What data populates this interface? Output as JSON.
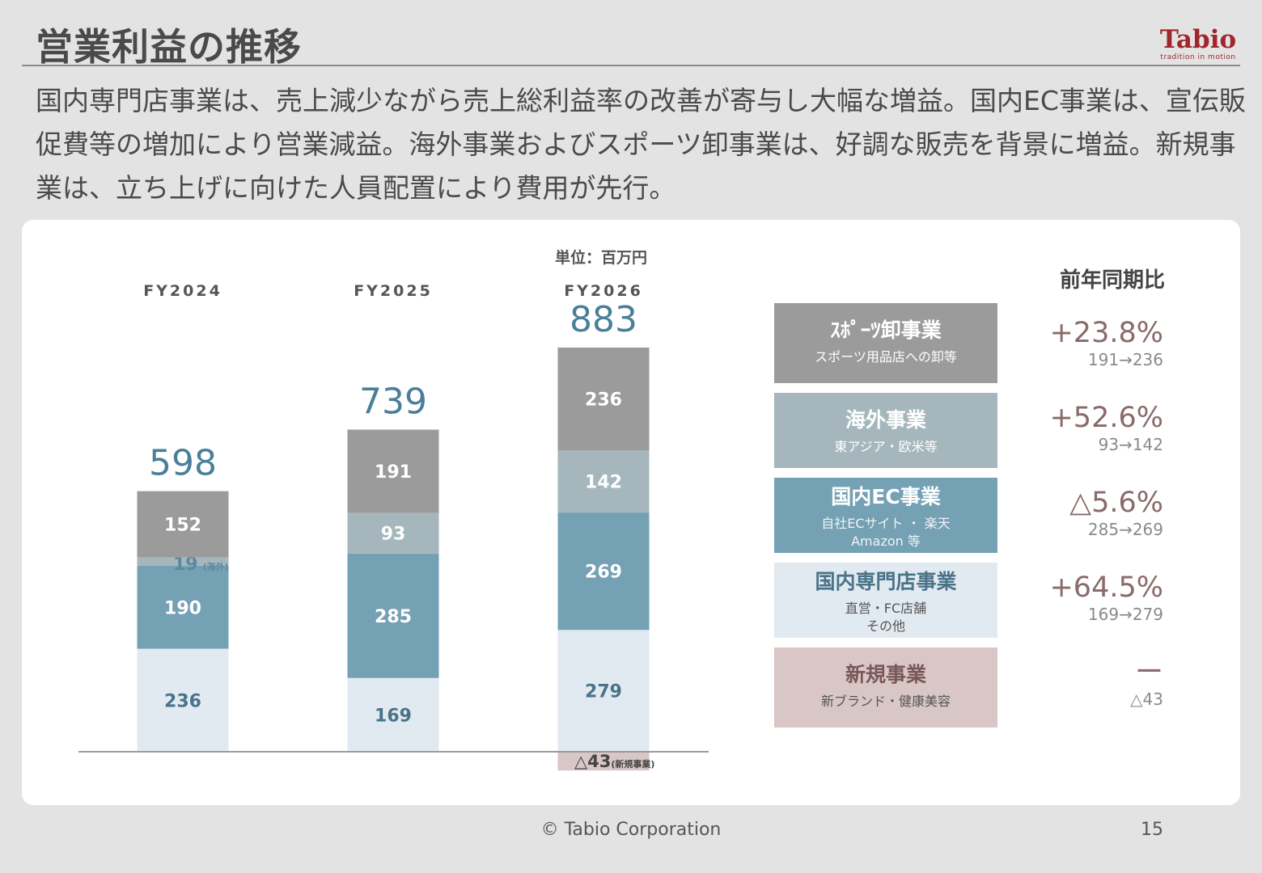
{
  "page": {
    "title": "営業利益の推移",
    "intro": "国内専門店事業は、売上減少ながら売上総利益率の改善が寄与し大幅な増益。国内EC事業は、宣伝販促費等の増加により営業減益。海外事業およびスポーツ卸事業は、好調な販売を背景に増益。新規事業は、立ち上げに向けた人員配置により費用が先行。",
    "footer": "© Tabio Corporation",
    "page_number": "15"
  },
  "logo": {
    "name": "Tabio",
    "tagline": "tradition in motion"
  },
  "chart_data": {
    "type": "bar",
    "stacked": true,
    "unit_label": "単位：百万円",
    "categories": [
      "FY2024",
      "FY2025",
      "FY2026"
    ],
    "totals": [
      598,
      739,
      883
    ],
    "series": [
      {
        "name": "国内専門店事業",
        "values": [
          236,
          169,
          279
        ],
        "color": "#e2eaf1",
        "text_color": "#4a7389"
      },
      {
        "name": "国内EC事業",
        "values": [
          190,
          285,
          269
        ],
        "color": "#75a1b4",
        "text_color": "#ffffff"
      },
      {
        "name": "海外事業",
        "values": [
          19,
          93,
          142
        ],
        "color": "#a5b7bd",
        "text_color": "#ffffff"
      },
      {
        "name": "スポーツ卸事業",
        "values": [
          152,
          191,
          236
        ],
        "color": "#9c9b9c",
        "text_color": "#ffffff"
      },
      {
        "name": "新規事業",
        "values": [
          null,
          null,
          -43
        ],
        "color": "#d9c7c7",
        "text_color": "#555555"
      }
    ],
    "annotations": {
      "fy2024_overseas": {
        "value": "19",
        "note": "(海外)"
      },
      "fy2026_new": {
        "value": "△43",
        "note": "(新規事業)"
      }
    },
    "legend_position": "right",
    "grid": false
  },
  "legend": {
    "header": "前年同期比",
    "segments": [
      {
        "name": "ｽﾎﾟｰﾂ卸事業",
        "sub": "スポーツ用品店への卸等",
        "sub2": "",
        "yoy": "+23.8%",
        "range": "191→236",
        "color": "#9c9b9c",
        "text_color": "#ffffff",
        "sub_color": "#ffffff"
      },
      {
        "name": "海外事業",
        "sub": "東アジア・欧米等",
        "sub2": "",
        "yoy": "+52.6%",
        "range": "93→142",
        "color": "#a5b7bd",
        "text_color": "#ffffff",
        "sub_color": "#ffffff"
      },
      {
        "name": "国内EC事業",
        "sub": "自社ECサイト ・ 楽天",
        "sub2": "Amazon 等",
        "yoy": "△5.6%",
        "range": "285→269",
        "color": "#75a1b4",
        "text_color": "#ffffff",
        "sub_color": "#eef4f7"
      },
      {
        "name": "国内専門店事業",
        "sub": "直営・FC店舗",
        "sub2": "その他",
        "yoy": "+64.5%",
        "range": "169→279",
        "color": "#e2eaf1",
        "text_color": "#4a7389",
        "sub_color": "#555555"
      },
      {
        "name": "新規事業",
        "sub": "新ブランド・健康美容",
        "sub2": "",
        "yoy": "ー",
        "range": "△43",
        "color": "#d9c7c7",
        "text_color": "#7a5858",
        "sub_color": "#555555"
      }
    ]
  }
}
